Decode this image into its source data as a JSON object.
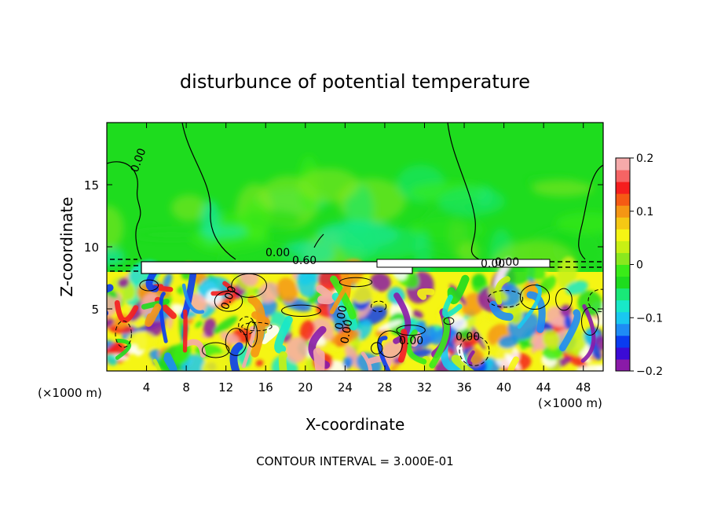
{
  "chart_data": {
    "type": "heatmap",
    "title": "disturbunce of potential temperature",
    "xlabel": "X-coordinate",
    "ylabel": "Z-coordinate",
    "x_unit_left": "(×1000 m)",
    "x_unit_right": "(×1000 m)",
    "footer": "CONTOUR INTERVAL = 3.000E-01",
    "xlim": [
      0,
      50
    ],
    "ylim": [
      0,
      20
    ],
    "x_ticks": [
      4,
      8,
      12,
      16,
      20,
      24,
      28,
      32,
      36,
      40,
      44,
      48
    ],
    "x_tick_labels": [
      "4",
      "8",
      "12",
      "16",
      "20",
      "24",
      "28",
      "32",
      "36",
      "40",
      "44",
      "48"
    ],
    "y_ticks": [
      5,
      10,
      15
    ],
    "y_tick_labels": [
      "5",
      "10",
      "15"
    ],
    "colorbar": {
      "range": [
        -0.2,
        0.2
      ],
      "ticks": [
        0.2,
        0.1,
        0,
        -0.1,
        -0.2
      ],
      "tick_labels": [
        "0.2",
        "0.1",
        "0",
        "−0.1",
        "−0.2"
      ],
      "colors": [
        "#8a1aa8",
        "#3b0bd6",
        "#0a3cf0",
        "#1e8cf5",
        "#19c8f0",
        "#18e8c8",
        "#19e878",
        "#1edc1e",
        "#3aec18",
        "#8ae81e",
        "#c8f014",
        "#f5f514",
        "#f5c814",
        "#f59614",
        "#f55a14",
        "#f51e1e",
        "#f56464",
        "#f5aaaa"
      ]
    },
    "contour_labels": [
      "0.00",
      "0.00",
      "0.60",
      "0.00",
      "0.00",
      "0.00",
      "0.00",
      "0.00",
      "0.00",
      "0.00"
    ],
    "colors": {
      "upper_field": "#1edc1e",
      "inversion_band": "#ffffff"
    }
  }
}
